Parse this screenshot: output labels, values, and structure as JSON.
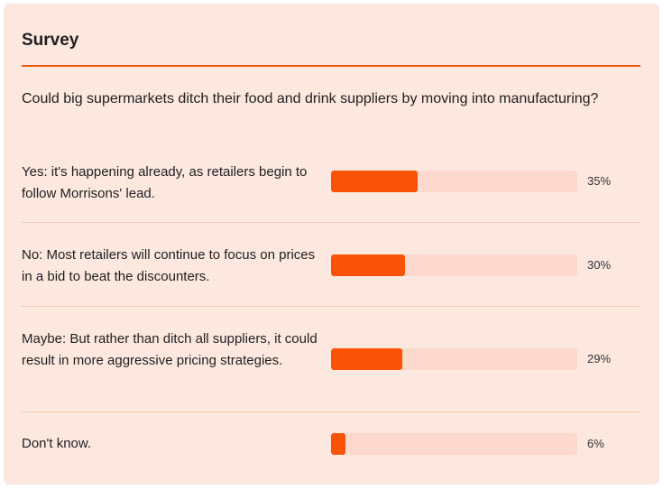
{
  "survey": {
    "title": "Survey",
    "question": "Could big supermarkets ditch their food and drink suppliers by moving into manufacturing?",
    "options": [
      {
        "label": "Yes: it's happening already, as retailers begin to follow Morrisons' lead.",
        "percent": 35,
        "percent_label": "35%"
      },
      {
        "label": "No: Most retailers will continue to focus on prices in a bid to beat the discounters.",
        "percent": 30,
        "percent_label": "30%"
      },
      {
        "label": "Maybe: But rather than ditch all suppliers, it could result in more aggressive pricing strategies.",
        "percent": 29,
        "percent_label": "29%"
      },
      {
        "label": "Don't know.",
        "percent": 6,
        "percent_label": "6%"
      }
    ]
  },
  "colors": {
    "card_background": "#fde8e0",
    "accent": "#ef5a12",
    "bar_fill": "#fa5307",
    "bar_track": "#fcd9cc"
  }
}
